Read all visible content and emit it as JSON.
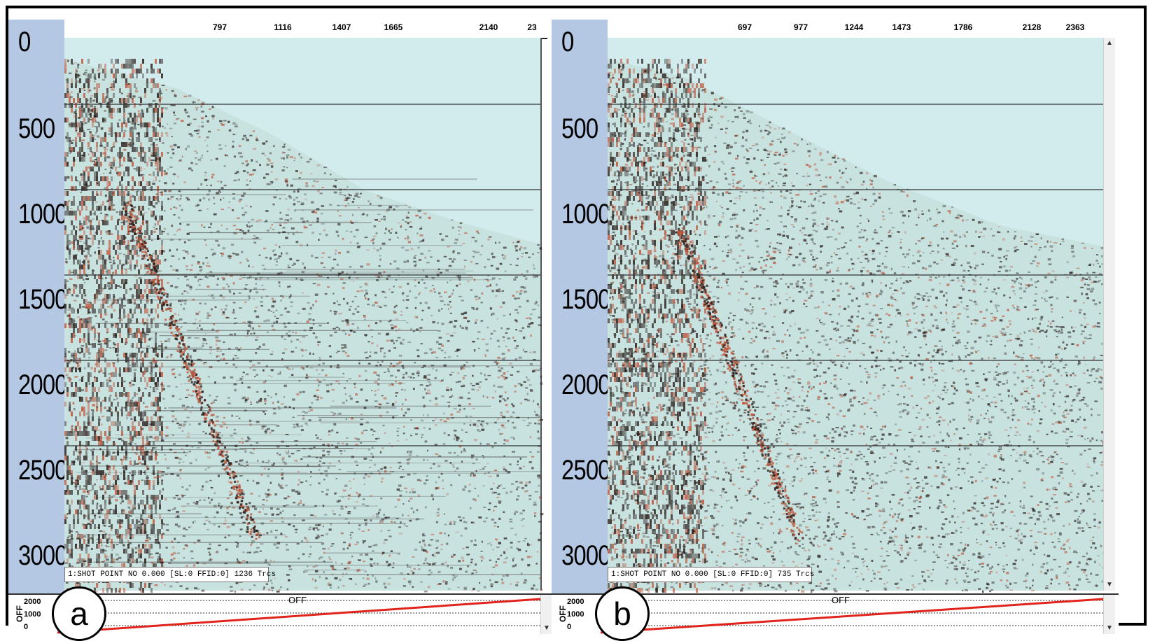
{
  "colors": {
    "axis_strip": "#b4c8e3",
    "empty_region": "#d2ecee",
    "noise_light": "#c8e2e0",
    "noise_dark": "#2a1e1a",
    "noise_red": "#c0553a",
    "offset_line": "#e0241c",
    "frame": "#000000"
  },
  "panels": [
    {
      "id": "a",
      "badge": "a",
      "y_labels": [
        "0",
        "500",
        "1000",
        "1500",
        "2000",
        "2500",
        "3000"
      ],
      "x_ticks": [
        "797",
        "1116",
        "1407",
        "1665",
        "2140",
        "23"
      ],
      "info_text": "1:SHOT POINT NO 0.000 [SL:0 FFID:0] 1236 Trcs",
      "offset_title": "OFF",
      "offset_ylabel": "OFF",
      "offset_ticks": [
        "2000",
        "1000",
        "0"
      ]
    },
    {
      "id": "b",
      "badge": "b",
      "y_labels": [
        "0",
        "500",
        "1000",
        "1500",
        "2000",
        "2500",
        "3000"
      ],
      "x_ticks": [
        "697",
        "977",
        "1244",
        "1473",
        "1786",
        "2128",
        "2363"
      ],
      "info_text": "1:SHOT POINT NO 0.000 [SL:0 FFID:0] 735 Trcs",
      "offset_title": "OFF",
      "offset_ylabel": "OFF",
      "offset_ticks": [
        "2000",
        "1000",
        "0"
      ]
    }
  ]
}
